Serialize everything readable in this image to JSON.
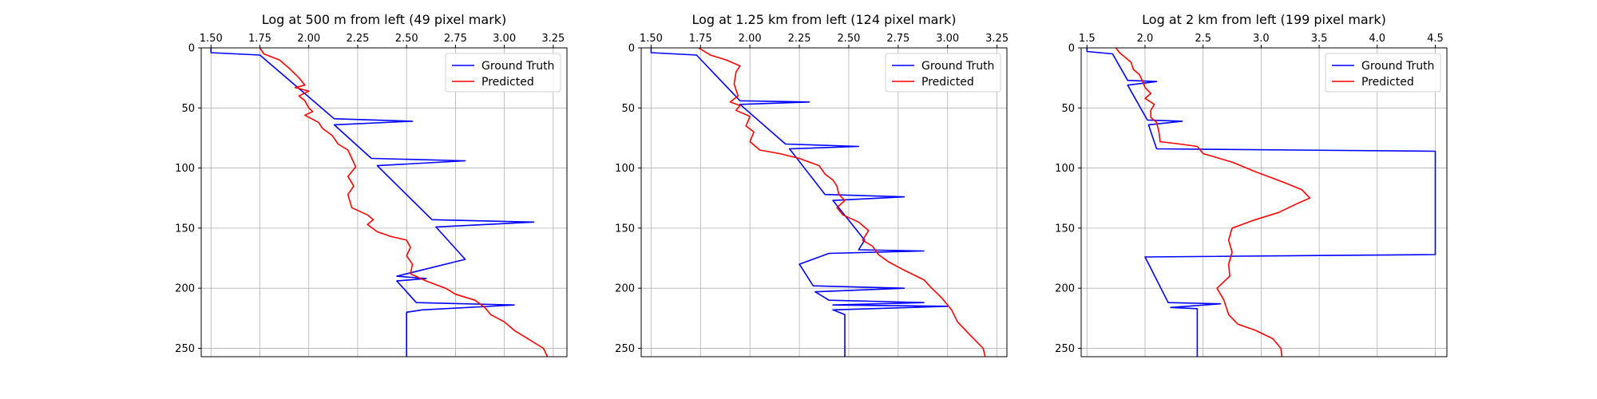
{
  "chart_data": [
    {
      "type": "line",
      "title": "Log at 500 m from left (49 pixel mark)",
      "xlabel": "",
      "ylabel": "",
      "xlim": [
        1.45,
        3.32
      ],
      "ylim": [
        257,
        0
      ],
      "xticks": [
        1.5,
        1.75,
        2.0,
        2.25,
        2.5,
        2.75,
        3.0,
        3.25
      ],
      "xtick_labels": [
        "1.50",
        "1.75",
        "2.00",
        "2.25",
        "2.50",
        "2.75",
        "3.00",
        "3.25"
      ],
      "yticks": [
        0,
        50,
        100,
        150,
        200,
        250
      ],
      "ytick_labels": [
        "0",
        "50",
        "100",
        "150",
        "200",
        "250"
      ],
      "grid": true,
      "legend_position": "top-right",
      "series": [
        {
          "name": "Ground Truth",
          "color": "#0000ff",
          "points": [
            [
              1.5,
              0
            ],
            [
              1.5,
              4
            ],
            [
              1.75,
              6
            ],
            [
              2.13,
              59
            ],
            [
              2.53,
              61
            ],
            [
              2.13,
              64
            ],
            [
              2.32,
              92
            ],
            [
              2.8,
              94
            ],
            [
              2.35,
              98
            ],
            [
              2.63,
              143
            ],
            [
              3.15,
              145
            ],
            [
              2.65,
              149
            ],
            [
              2.8,
              176
            ],
            [
              2.45,
              190
            ],
            [
              2.6,
              192
            ],
            [
              2.45,
              194
            ],
            [
              2.55,
              212
            ],
            [
              3.05,
              214
            ],
            [
              2.58,
              218
            ],
            [
              2.5,
              220
            ],
            [
              2.5,
              257
            ]
          ]
        },
        {
          "name": "Predicted",
          "color": "#ff0000",
          "points": [
            [
              1.75,
              0
            ],
            [
              1.77,
              5
            ],
            [
              1.85,
              10
            ],
            [
              1.9,
              17
            ],
            [
              1.95,
              25
            ],
            [
              1.98,
              31
            ],
            [
              1.93,
              33
            ],
            [
              2.0,
              36
            ],
            [
              1.95,
              40
            ],
            [
              1.98,
              44
            ],
            [
              2.0,
              50
            ],
            [
              2.02,
              53
            ],
            [
              1.98,
              56
            ],
            [
              2.05,
              62
            ],
            [
              2.07,
              67
            ],
            [
              2.12,
              73
            ],
            [
              2.15,
              80
            ],
            [
              2.2,
              85
            ],
            [
              2.22,
              92
            ],
            [
              2.24,
              99
            ],
            [
              2.2,
              107
            ],
            [
              2.23,
              115
            ],
            [
              2.2,
              122
            ],
            [
              2.22,
              133
            ],
            [
              2.3,
              139
            ],
            [
              2.33,
              143
            ],
            [
              2.3,
              147
            ],
            [
              2.35,
              153
            ],
            [
              2.42,
              157
            ],
            [
              2.5,
              160
            ],
            [
              2.52,
              166
            ],
            [
              2.5,
              173
            ],
            [
              2.53,
              180
            ],
            [
              2.52,
              188
            ],
            [
              2.6,
              194
            ],
            [
              2.7,
              200
            ],
            [
              2.75,
              205
            ],
            [
              2.85,
              210
            ],
            [
              2.9,
              216
            ],
            [
              2.93,
              222
            ],
            [
              3.0,
              228
            ],
            [
              3.05,
              235
            ],
            [
              3.12,
              242
            ],
            [
              3.2,
              250
            ],
            [
              3.22,
              257
            ]
          ]
        }
      ]
    },
    {
      "type": "line",
      "title": "Log at 1.25 km from left (124 pixel mark)",
      "xlabel": "",
      "ylabel": "",
      "xlim": [
        1.45,
        3.3
      ],
      "ylim": [
        257,
        0
      ],
      "xticks": [
        1.5,
        1.75,
        2.0,
        2.25,
        2.5,
        2.75,
        3.0,
        3.25
      ],
      "xtick_labels": [
        "1.50",
        "1.75",
        "2.00",
        "2.25",
        "2.50",
        "2.75",
        "3.00",
        "3.25"
      ],
      "yticks": [
        0,
        50,
        100,
        150,
        200,
        250
      ],
      "ytick_labels": [
        "0",
        "50",
        "100",
        "150",
        "200",
        "250"
      ],
      "grid": true,
      "legend_position": "top-right",
      "series": [
        {
          "name": "Ground Truth",
          "color": "#0000ff",
          "points": [
            [
              1.5,
              0
            ],
            [
              1.5,
              4
            ],
            [
              1.73,
              6
            ],
            [
              1.95,
              44
            ],
            [
              2.3,
              45
            ],
            [
              1.95,
              47
            ],
            [
              2.18,
              80
            ],
            [
              2.55,
              82
            ],
            [
              2.2,
              84
            ],
            [
              2.38,
              122
            ],
            [
              2.78,
              124
            ],
            [
              2.42,
              127
            ],
            [
              2.58,
              160
            ],
            [
              2.55,
              168
            ],
            [
              2.88,
              169
            ],
            [
              2.4,
              171
            ],
            [
              2.25,
              180
            ],
            [
              2.32,
              198
            ],
            [
              2.78,
              200
            ],
            [
              2.33,
              203
            ],
            [
              2.4,
              210
            ],
            [
              2.88,
              212
            ],
            [
              2.42,
              214
            ],
            [
              3.0,
              215
            ],
            [
              2.42,
              218
            ],
            [
              2.48,
              222
            ],
            [
              2.48,
              257
            ]
          ]
        },
        {
          "name": "Predicted",
          "color": "#ff0000",
          "points": [
            [
              1.74,
              0
            ],
            [
              1.8,
              6
            ],
            [
              1.88,
              10
            ],
            [
              1.95,
              15
            ],
            [
              1.93,
              20
            ],
            [
              1.92,
              30
            ],
            [
              1.94,
              40
            ],
            [
              1.9,
              45
            ],
            [
              1.95,
              48
            ],
            [
              1.93,
              52
            ],
            [
              2.0,
              57
            ],
            [
              1.98,
              65
            ],
            [
              2.02,
              70
            ],
            [
              2.0,
              78
            ],
            [
              2.05,
              85
            ],
            [
              2.15,
              88
            ],
            [
              2.25,
              92
            ],
            [
              2.35,
              98
            ],
            [
              2.38,
              105
            ],
            [
              2.42,
              110
            ],
            [
              2.44,
              115
            ],
            [
              2.45,
              122
            ],
            [
              2.48,
              127
            ],
            [
              2.44,
              133
            ],
            [
              2.47,
              139
            ],
            [
              2.55,
              145
            ],
            [
              2.6,
              152
            ],
            [
              2.57,
              160
            ],
            [
              2.62,
              165
            ],
            [
              2.65,
              172
            ],
            [
              2.7,
              178
            ],
            [
              2.78,
              185
            ],
            [
              2.88,
              193
            ],
            [
              2.92,
              200
            ],
            [
              2.97,
              208
            ],
            [
              3.02,
              218
            ],
            [
              3.05,
              228
            ],
            [
              3.12,
              240
            ],
            [
              3.18,
              250
            ],
            [
              3.19,
              257
            ]
          ]
        }
      ]
    },
    {
      "type": "line",
      "title": "Log at 2 km from left (199 pixel mark)",
      "xlabel": "",
      "ylabel": "",
      "xlim": [
        1.45,
        4.6
      ],
      "ylim": [
        257,
        0
      ],
      "xticks": [
        1.5,
        2.0,
        2.5,
        3.0,
        3.5,
        4.0,
        4.5
      ],
      "xtick_labels": [
        "1.5",
        "2.0",
        "2.5",
        "3.0",
        "3.5",
        "4.0",
        "4.5"
      ],
      "yticks": [
        0,
        50,
        100,
        150,
        200,
        250
      ],
      "ytick_labels": [
        "0",
        "50",
        "100",
        "150",
        "200",
        "250"
      ],
      "grid": true,
      "legend_position": "top-right",
      "series": [
        {
          "name": "Ground Truth",
          "color": "#0000ff",
          "points": [
            [
              1.5,
              0
            ],
            [
              1.5,
              3
            ],
            [
              1.72,
              5
            ],
            [
              1.85,
              27
            ],
            [
              2.1,
              28
            ],
            [
              1.85,
              31
            ],
            [
              2.02,
              60
            ],
            [
              2.32,
              61
            ],
            [
              2.03,
              64
            ],
            [
              2.1,
              84
            ],
            [
              4.5,
              86
            ],
            [
              4.5,
              172
            ],
            [
              2.0,
              174
            ],
            [
              2.2,
              212
            ],
            [
              2.65,
              213
            ],
            [
              2.22,
              216
            ],
            [
              2.45,
              217
            ],
            [
              2.45,
              257
            ]
          ]
        },
        {
          "name": "Predicted",
          "color": "#ff0000",
          "points": [
            [
              1.75,
              0
            ],
            [
              1.78,
              4
            ],
            [
              1.83,
              8
            ],
            [
              1.88,
              12
            ],
            [
              1.9,
              18
            ],
            [
              1.95,
              22
            ],
            [
              1.98,
              28
            ],
            [
              2.0,
              33
            ],
            [
              2.05,
              38
            ],
            [
              2.0,
              42
            ],
            [
              2.08,
              47
            ],
            [
              2.05,
              52
            ],
            [
              2.05,
              58
            ],
            [
              2.1,
              62
            ],
            [
              2.12,
              70
            ],
            [
              2.13,
              78
            ],
            [
              2.3,
              80
            ],
            [
              2.45,
              82
            ],
            [
              2.5,
              88
            ],
            [
              2.75,
              95
            ],
            [
              2.95,
              103
            ],
            [
              3.2,
              112
            ],
            [
              3.35,
              118
            ],
            [
              3.42,
              125
            ],
            [
              3.3,
              130
            ],
            [
              3.15,
              137
            ],
            [
              2.95,
              143
            ],
            [
              2.75,
              150
            ],
            [
              2.72,
              160
            ],
            [
              2.75,
              170
            ],
            [
              2.72,
              180
            ],
            [
              2.73,
              190
            ],
            [
              2.62,
              200
            ],
            [
              2.68,
              210
            ],
            [
              2.72,
              222
            ],
            [
              2.8,
              230
            ],
            [
              2.95,
              235
            ],
            [
              3.1,
              242
            ],
            [
              3.17,
              250
            ],
            [
              3.18,
              257
            ]
          ]
        }
      ]
    }
  ]
}
